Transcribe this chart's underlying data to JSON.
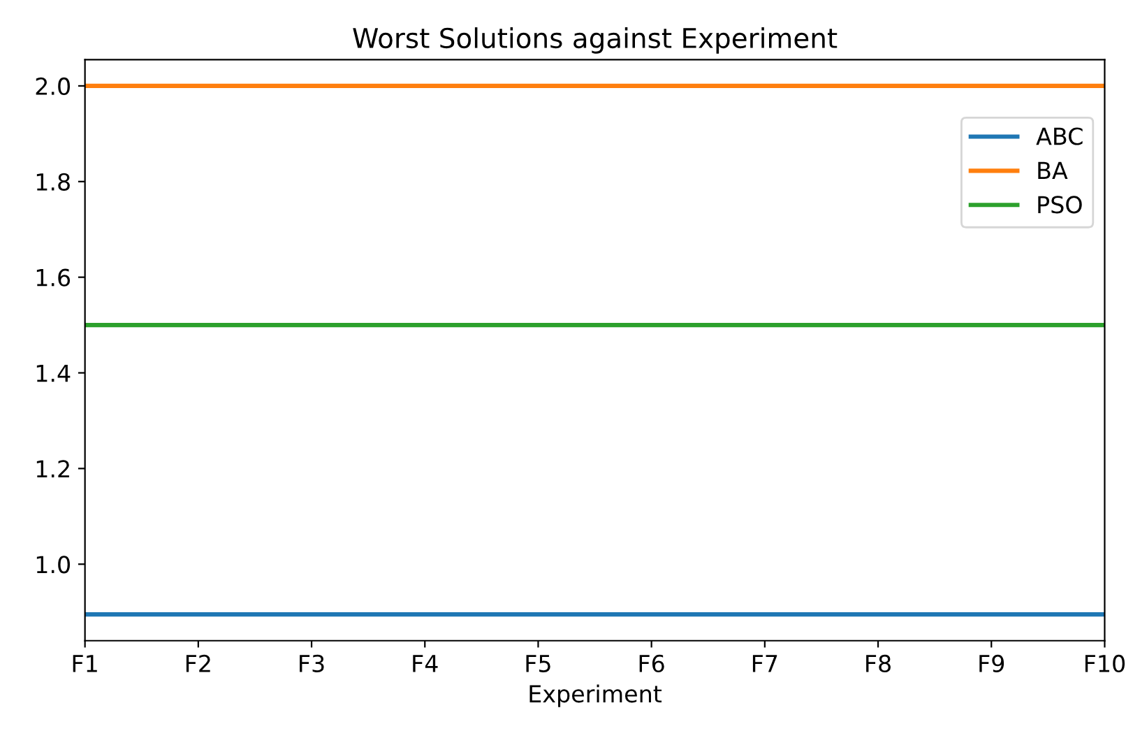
{
  "chart_data": {
    "type": "line",
    "title": "Worst Solutions against Experiment",
    "xlabel": "Experiment",
    "categories": [
      "F1",
      "F2",
      "F3",
      "F4",
      "F5",
      "F6",
      "F7",
      "F8",
      "F9",
      "F10"
    ],
    "series": [
      {
        "name": "ABC",
        "color": "#1f77b4",
        "values": [
          0.895,
          0.895,
          0.895,
          0.895,
          0.895,
          0.895,
          0.895,
          0.895,
          0.895,
          0.895
        ]
      },
      {
        "name": "BA",
        "color": "#ff7f0e",
        "values": [
          2.0,
          2.0,
          2.0,
          2.0,
          2.0,
          2.0,
          2.0,
          2.0,
          2.0,
          2.0
        ]
      },
      {
        "name": "PSO",
        "color": "#2ca02c",
        "values": [
          1.5,
          1.5,
          1.5,
          1.5,
          1.5,
          1.5,
          1.5,
          1.5,
          1.5,
          1.5
        ]
      }
    ],
    "ylim": [
      0.84,
      2.055
    ],
    "yticks": [
      {
        "value": 1.0,
        "label": "1.0"
      },
      {
        "value": 1.2,
        "label": "1.2"
      },
      {
        "value": 1.4,
        "label": "1.4"
      },
      {
        "value": 1.6,
        "label": "1.6"
      },
      {
        "value": 1.8,
        "label": "1.8"
      },
      {
        "value": 2.0,
        "label": "2.0"
      }
    ],
    "legend": "top right",
    "grid": false,
    "marker": "none",
    "line_style": "solid"
  }
}
